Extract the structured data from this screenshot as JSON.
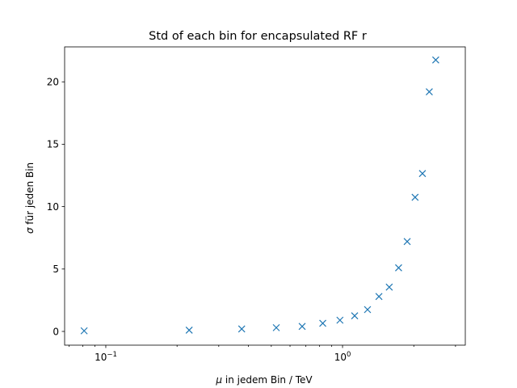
{
  "chart_data": {
    "type": "scatter",
    "title": "Std of each bin for encapsulated RF r",
    "xlabel_symbol": "μ",
    "xlabel_rest": " in jedem Bin / TeV",
    "ylabel_symbol": "σ",
    "ylabel_rest": " für jeden Bin",
    "x_scale": "log",
    "xlim": [
      0.067,
      3.3
    ],
    "ylim": [
      -1.1,
      22.8
    ],
    "x_ticks": [
      {
        "value": 0.1,
        "base": "10",
        "exp": "−1"
      },
      {
        "value": 1,
        "base": "10",
        "exp": "0"
      }
    ],
    "y_ticks": [
      {
        "value": 0,
        "label": "0"
      },
      {
        "value": 5,
        "label": "5"
      },
      {
        "value": 10,
        "label": "10"
      },
      {
        "value": 15,
        "label": "15"
      },
      {
        "value": 20,
        "label": "20"
      }
    ],
    "marker": "x",
    "color": "#1f77b4",
    "grid": false,
    "points": [
      {
        "x": 0.081,
        "y": 0.05
      },
      {
        "x": 0.225,
        "y": 0.1
      },
      {
        "x": 0.375,
        "y": 0.2
      },
      {
        "x": 0.525,
        "y": 0.3
      },
      {
        "x": 0.675,
        "y": 0.4
      },
      {
        "x": 0.825,
        "y": 0.65
      },
      {
        "x": 0.975,
        "y": 0.9
      },
      {
        "x": 1.125,
        "y": 1.25
      },
      {
        "x": 1.275,
        "y": 1.75
      },
      {
        "x": 1.425,
        "y": 2.8
      },
      {
        "x": 1.575,
        "y": 3.55
      },
      {
        "x": 1.725,
        "y": 5.1
      },
      {
        "x": 1.875,
        "y": 7.2
      },
      {
        "x": 2.025,
        "y": 10.75
      },
      {
        "x": 2.175,
        "y": 12.65
      },
      {
        "x": 2.325,
        "y": 19.2
      },
      {
        "x": 2.475,
        "y": 21.75
      }
    ]
  }
}
